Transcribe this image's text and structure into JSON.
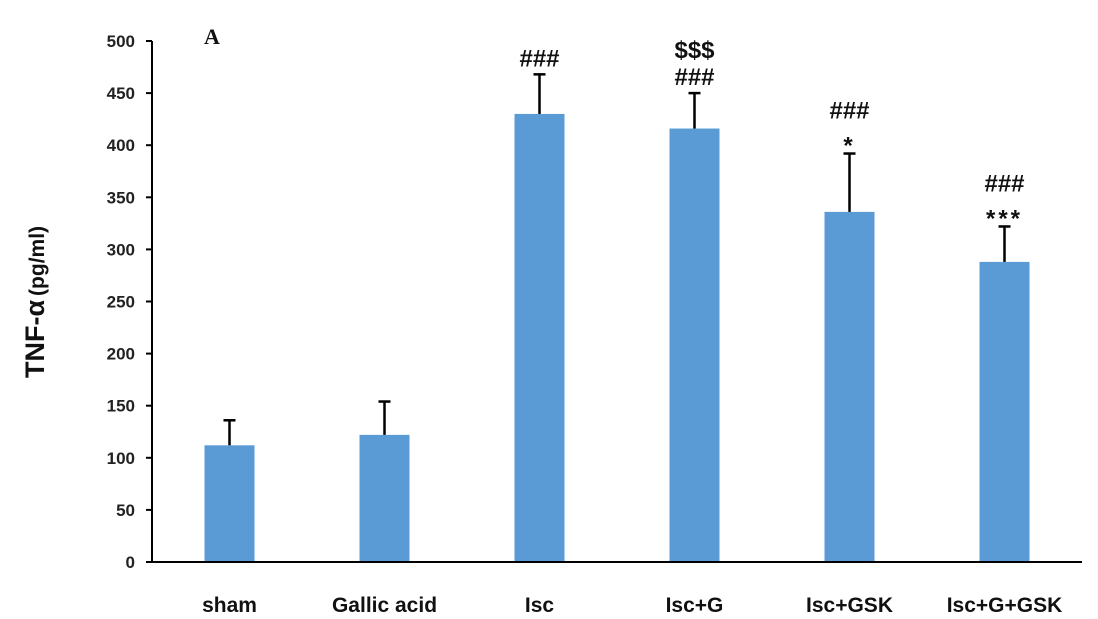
{
  "chart_data": {
    "type": "bar",
    "panel_label": "A",
    "ylabel_main": "TNF-α",
    "ylabel_unit": "(pg/ml)",
    "xlabel": "",
    "ylim": [
      0,
      500
    ],
    "yticks": [
      0,
      50,
      100,
      150,
      200,
      250,
      300,
      350,
      400,
      450,
      500
    ],
    "categories": [
      "sham",
      "Gallic acid",
      "Isc",
      "Isc+G",
      "Isc+GSK",
      "Isc+G+GSK"
    ],
    "values": [
      112,
      122,
      430,
      416,
      336,
      288
    ],
    "errors": [
      24,
      32,
      38,
      34,
      56,
      34
    ],
    "annotations": [
      [],
      [],
      [
        "###"
      ],
      [
        "$$$",
        "###"
      ],
      [
        "###",
        "*"
      ],
      [
        "###",
        "***"
      ]
    ],
    "bar_color": "#5B9BD5",
    "grid": false
  }
}
